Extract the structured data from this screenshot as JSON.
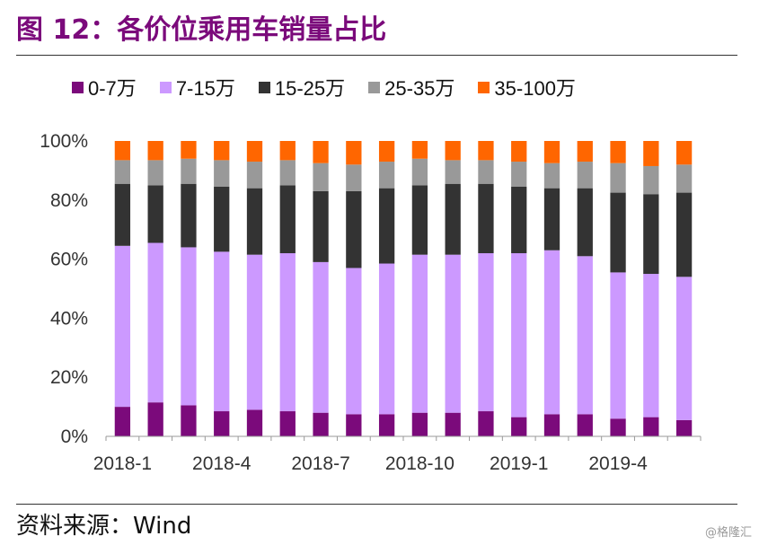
{
  "header": {
    "title": "图 12：各价位乘用车销量占比"
  },
  "footer": {
    "source": "资料来源：Wind",
    "watermark": "@格隆汇"
  },
  "colors": {
    "0-7万": "#7B0A7B",
    "7-15万": "#CC99FF",
    "15-25万": "#333333",
    "25-35万": "#999999",
    "35-100万": "#FF6600"
  },
  "chart_data": {
    "type": "bar",
    "stacked": true,
    "percent": true,
    "categories": [
      "2018-1",
      "2018-2",
      "2018-3",
      "2018-4",
      "2018-5",
      "2018-6",
      "2018-7",
      "2018-8",
      "2018-9",
      "2018-10",
      "2018-11",
      "2018-12",
      "2019-1",
      "2019-2",
      "2019-3",
      "2019-4",
      "2019-5",
      "2019-6"
    ],
    "x_tick_labels": [
      "2018-1",
      "2018-4",
      "2018-7",
      "2018-10",
      "2019-1",
      "2019-4"
    ],
    "y_tick_labels": [
      "0%",
      "20%",
      "40%",
      "60%",
      "80%",
      "100%"
    ],
    "ylim": [
      0,
      100
    ],
    "legend_position": "top",
    "series": [
      {
        "name": "0-7万",
        "values": [
          10,
          11.5,
          10.5,
          8.5,
          9,
          8.5,
          8,
          7.5,
          7.5,
          8,
          8,
          8.5,
          6.5,
          7.5,
          7.5,
          6,
          6.5,
          5.5
        ]
      },
      {
        "name": "7-15万",
        "values": [
          54.5,
          54,
          53.5,
          54,
          52.5,
          53.5,
          51,
          49.5,
          51,
          53.5,
          53.5,
          53.5,
          55.5,
          55.5,
          53.5,
          49.5,
          48.5,
          48.5
        ]
      },
      {
        "name": "15-25万",
        "values": [
          21,
          19.5,
          21.5,
          22,
          22.5,
          23,
          24,
          26,
          25.5,
          23.5,
          24,
          23.5,
          22.5,
          21,
          23,
          27,
          27,
          28.5
        ]
      },
      {
        "name": "25-35万",
        "values": [
          8,
          8.5,
          8.5,
          9,
          9,
          8.5,
          9.5,
          9,
          9,
          9,
          8,
          8,
          8.5,
          8.5,
          9,
          10,
          9.5,
          9.5
        ]
      },
      {
        "name": "35-100万",
        "values": [
          6.5,
          6.5,
          6,
          6.5,
          7,
          6.5,
          7.5,
          8,
          7,
          6,
          6.5,
          6.5,
          7,
          7.5,
          7,
          7.5,
          8.5,
          8
        ]
      }
    ]
  }
}
